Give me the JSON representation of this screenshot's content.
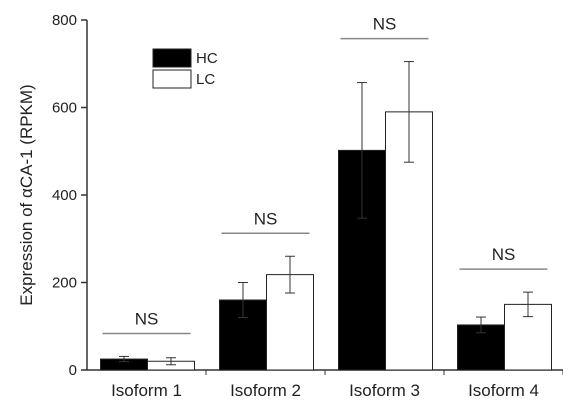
{
  "chart_data": {
    "type": "bar",
    "title": "",
    "xlabel": "",
    "ylabel": "Expression of αCA-1 (RPKM)",
    "ylim": [
      0,
      800
    ],
    "yticks": [
      0,
      200,
      400,
      600,
      800
    ],
    "categories": [
      "Isoform 1",
      "Isoform 2",
      "Isoform 3",
      "Isoform 4"
    ],
    "series": [
      {
        "name": "HC",
        "color": "#000000",
        "values": [
          25,
          160,
          502,
          103
        ],
        "errors": [
          6,
          40,
          155,
          18
        ]
      },
      {
        "name": "LC",
        "color": "#ffffff",
        "values": [
          20,
          218,
          590,
          150
        ],
        "errors": [
          8,
          42,
          115,
          28
        ]
      }
    ],
    "annotations": [
      "NS",
      "NS",
      "NS",
      "NS"
    ],
    "legend_position": "top-left",
    "grid": false
  }
}
